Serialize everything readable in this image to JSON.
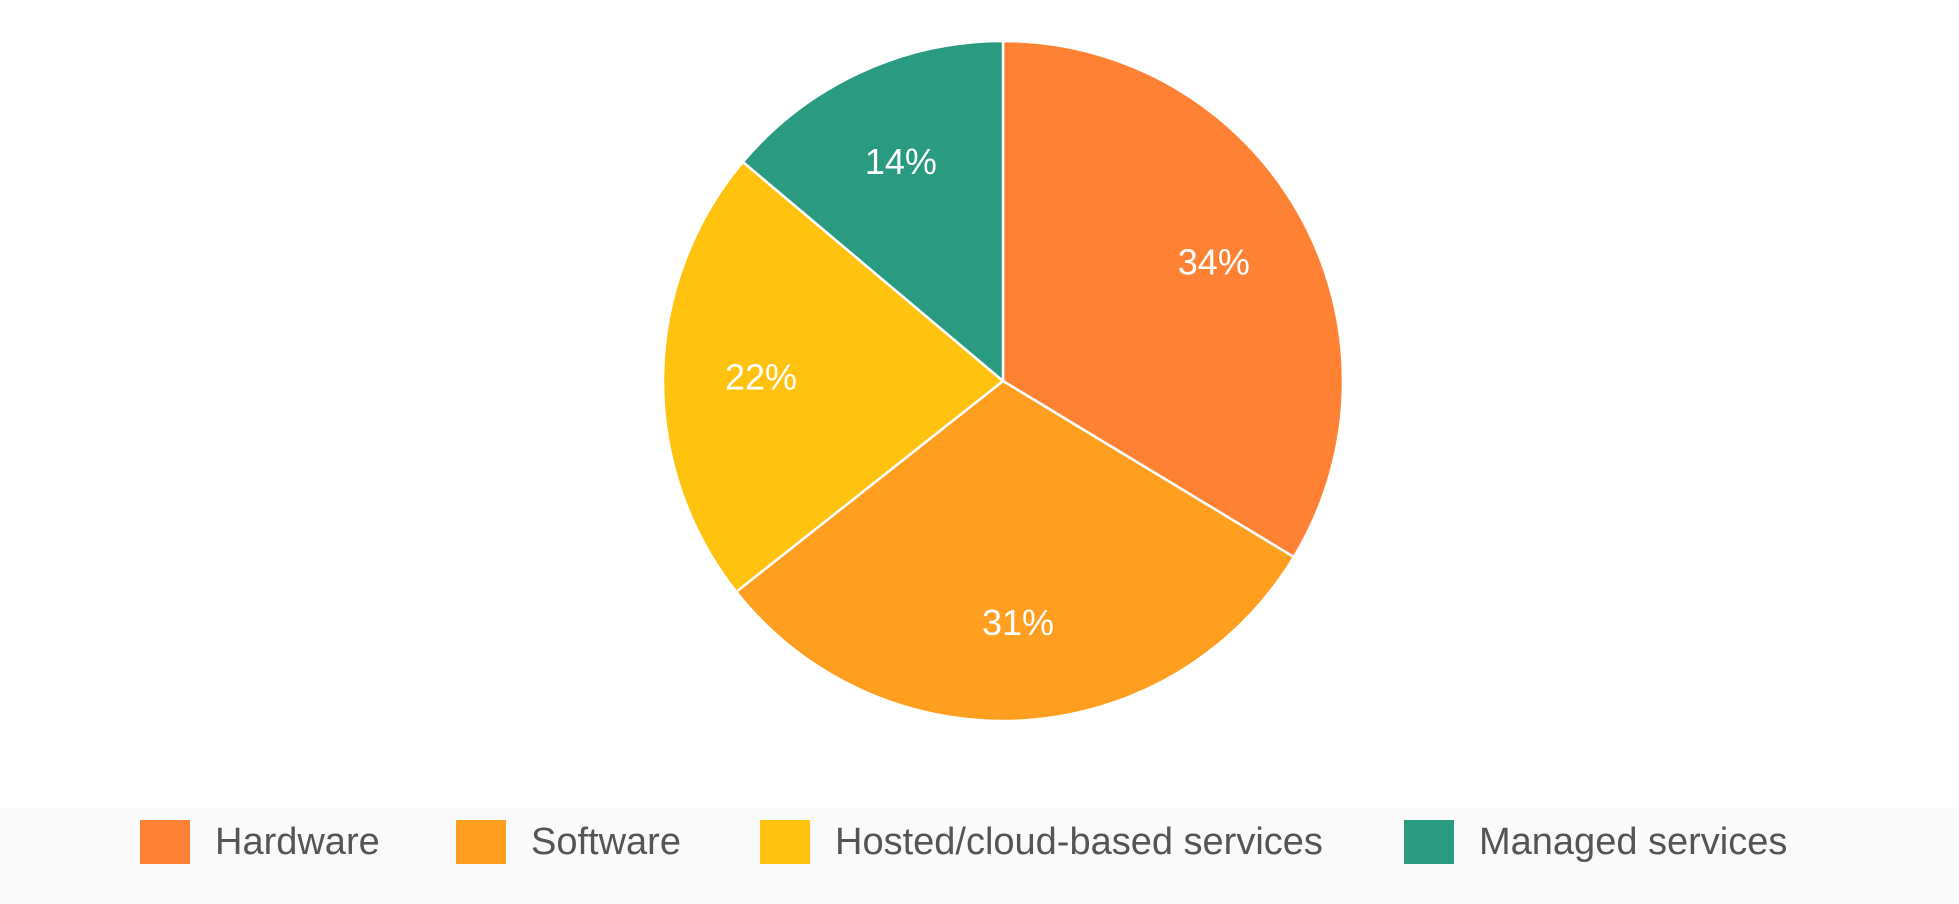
{
  "chart_data": {
    "type": "pie",
    "title": "",
    "start_angle_deg": 0,
    "direction": "clockwise",
    "legend_position": "bottom",
    "slices": [
      {
        "name": "Hardware",
        "value": 34,
        "label": "34%",
        "color": "#FF8133"
      },
      {
        "name": "Software",
        "value": 31,
        "label": "31%",
        "color": "#FF9E1F"
      },
      {
        "name": "Hosted/cloud-based services",
        "value": 22,
        "label": "22%",
        "color": "#FFC20F"
      },
      {
        "name": "Managed services",
        "value": 14,
        "label": "14%",
        "color": "#2A9A80"
      }
    ]
  }
}
